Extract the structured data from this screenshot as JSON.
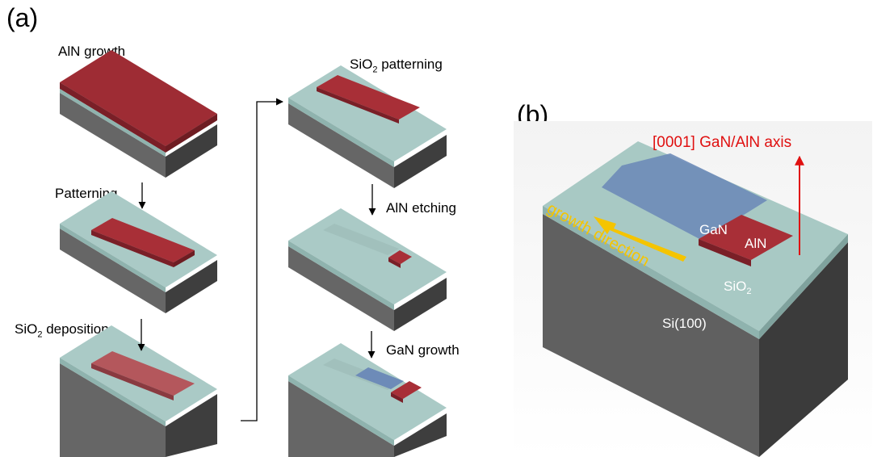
{
  "panels": {
    "a": "(a)",
    "b": "(b)"
  },
  "steps": {
    "aln_growth": "AlN growth",
    "patterning": "Patterning",
    "sio2_deposition": {
      "pre": "SiO",
      "sub": "2",
      "post": " deposition"
    },
    "sio2_patterning": {
      "pre": "SiO",
      "sub": "2",
      "post": " patterning"
    },
    "aln_etching": "AlN etching",
    "gan_growth": "GaN growth"
  },
  "panel_b": {
    "axis_label": "[0001] GaN/AlN axis",
    "growth_direction": "growth direction",
    "gan": "GaN",
    "aln": "AlN",
    "sio2": {
      "pre": "SiO",
      "sub": "2"
    },
    "substrate": "Si(100)"
  },
  "colors": {
    "aln": "#b03038",
    "gan": "#6d8bb8",
    "sio2": "#b9d3cf",
    "si": "#5f5f5f",
    "axis_arrow": "#e01010",
    "growth_arrow": "#f5c400"
  }
}
